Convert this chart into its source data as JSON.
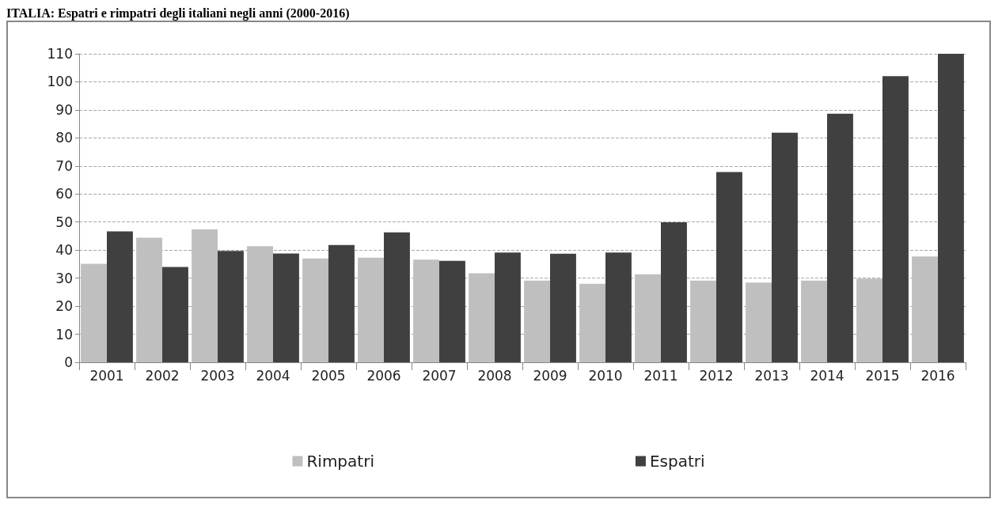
{
  "chart_data": {
    "type": "bar",
    "title": "ITALIA: Espatri e rimpatri degli italiani negli anni (2000-2016)",
    "categories": [
      "2001",
      "2002",
      "2003",
      "2004",
      "2005",
      "2006",
      "2007",
      "2008",
      "2009",
      "2010",
      "2011",
      "2012",
      "2013",
      "2014",
      "2015",
      "2016"
    ],
    "series": [
      {
        "name": "Rimpatri",
        "color": "#bfbfbf",
        "values": [
          35.1,
          44.4,
          47.4,
          41.4,
          37.0,
          37.3,
          36.6,
          31.7,
          29.1,
          28.0,
          31.4,
          29.1,
          28.4,
          29.1,
          29.8,
          37.7
        ]
      },
      {
        "name": "Espatri",
        "color": "#404040",
        "values": [
          46.7,
          34.0,
          39.7,
          38.8,
          41.8,
          46.3,
          36.2,
          39.1,
          38.7,
          39.1,
          49.9,
          67.8,
          81.9,
          88.6,
          102.0,
          110.0
        ]
      }
    ],
    "ylim": [
      0,
      110
    ],
    "yticks": [
      0,
      10,
      20,
      30,
      40,
      50,
      60,
      70,
      80,
      90,
      100,
      110
    ],
    "grid": "y",
    "legend": "bottom"
  }
}
